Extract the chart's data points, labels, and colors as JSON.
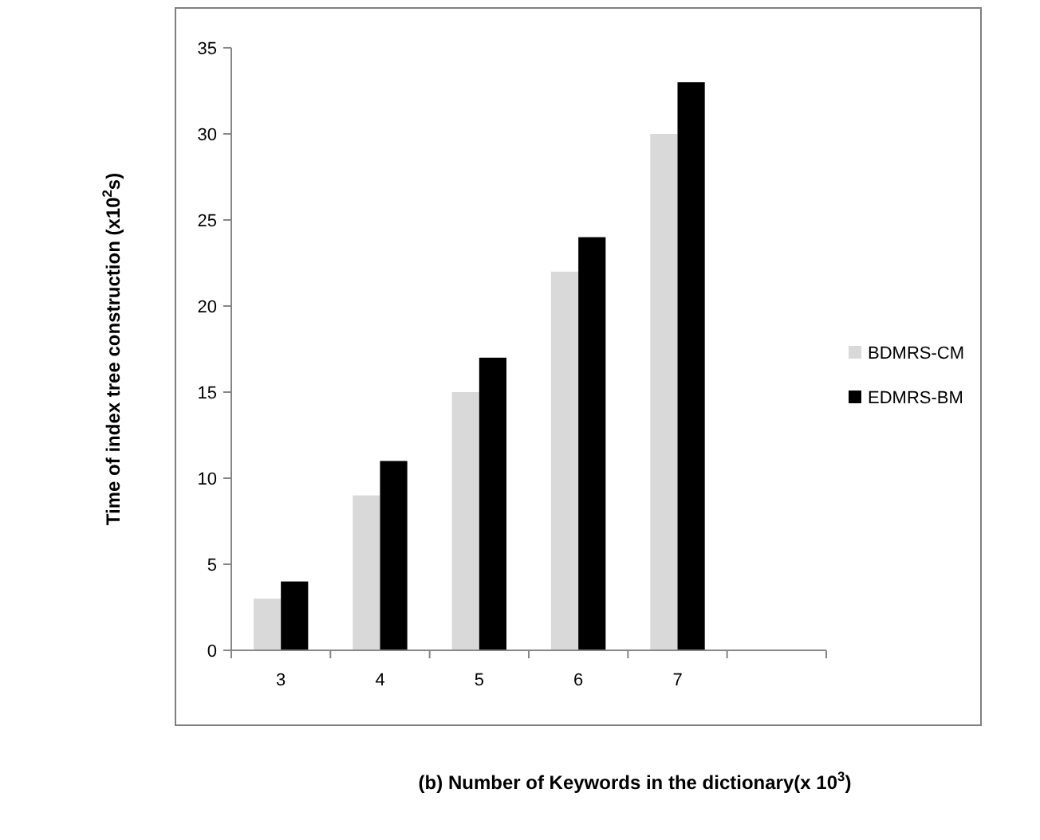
{
  "chart_data": {
    "type": "bar",
    "xlabel": "(b)  Number of Keywords in the dictionary(x 10$^{3}$)",
    "ylabel": "Time of index tree construction (x10$^{2}$s)",
    "categories": [
      "3",
      "4",
      "5",
      "6",
      "7",
      null
    ],
    "series": [
      {
        "name": "BDMRS-CM",
        "color": "#d9d9d9",
        "values": [
          3,
          9,
          15,
          22,
          30,
          null
        ]
      },
      {
        "name": "EDMRS-BM",
        "color": "#000000",
        "values": [
          4,
          11,
          17,
          24,
          33,
          null
        ]
      }
    ],
    "ylim": [
      0,
      35
    ],
    "yticks": [
      0,
      5,
      10,
      15,
      20,
      25,
      30,
      35
    ],
    "legend": "right"
  }
}
